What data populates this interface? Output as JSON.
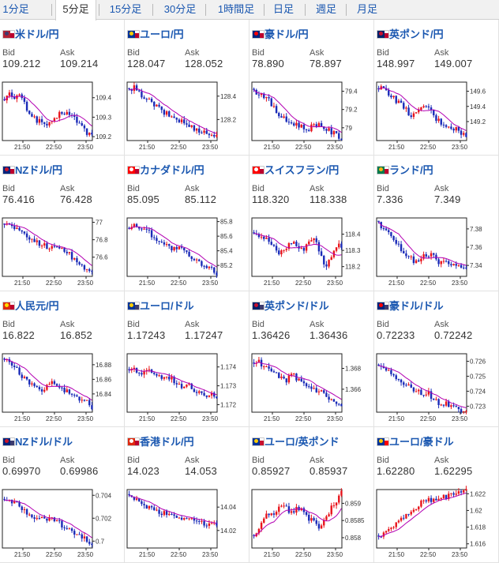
{
  "tabs": [
    {
      "label": "1分足",
      "active": false
    },
    {
      "label": "5分足",
      "active": true
    },
    {
      "label": "15分足",
      "active": false
    },
    {
      "label": "30分足",
      "active": false
    },
    {
      "label": "1時間足",
      "active": false
    },
    {
      "label": "日足",
      "active": false
    },
    {
      "label": "週足",
      "active": false
    },
    {
      "label": "月足",
      "active": false
    }
  ],
  "labels": {
    "bid": "Bid",
    "ask": "Ask"
  },
  "x_ticks": [
    "21:50",
    "22:50",
    "23:50"
  ],
  "colors": {
    "up": "#e8141c",
    "down": "#1a2bb8",
    "ma": "#b300b3",
    "link": "#1a57b0"
  },
  "pairs": [
    {
      "name": "米ドル/円",
      "flag_icon": "us-jp-flag-icon",
      "bid": "109.212",
      "ask": "109.214",
      "y_ticks": [
        "109.4",
        "109.3",
        "109.2"
      ],
      "y_range": [
        109.18,
        109.48
      ],
      "path": [
        109.4,
        109.42,
        109.38,
        109.43,
        109.37,
        109.33,
        109.3,
        109.28,
        109.27,
        109.26,
        109.27,
        109.31,
        109.33,
        109.32,
        109.3,
        109.28,
        109.25,
        109.22,
        109.21
      ],
      "ma_dir": "down"
    },
    {
      "name": "ユーロ/円",
      "flag_icon": "eu-jp-flag-icon",
      "bid": "128.047",
      "ask": "128.052",
      "y_ticks": [
        "128.4",
        "128.2"
      ],
      "y_range": [
        128.02,
        128.52
      ],
      "path": [
        128.44,
        128.47,
        128.42,
        128.4,
        128.36,
        128.33,
        128.3,
        128.26,
        128.24,
        128.22,
        128.2,
        128.18,
        128.15,
        128.13,
        128.12,
        128.1,
        128.08,
        128.07,
        128.05
      ],
      "ma_dir": "down"
    },
    {
      "name": "豪ドル/円",
      "flag_icon": "au-jp-flag-icon",
      "bid": "78.890",
      "ask": "78.897",
      "y_ticks": [
        "79.4",
        "79.2",
        "79"
      ],
      "y_range": [
        78.86,
        79.5
      ],
      "path": [
        79.4,
        79.38,
        79.36,
        79.3,
        79.22,
        79.15,
        79.1,
        79.06,
        79.05,
        79.04,
        79.0,
        78.98,
        79.02,
        79.05,
        79.02,
        78.98,
        78.95,
        78.92,
        78.89
      ],
      "ma_dir": "down"
    },
    {
      "name": "英ポンド/円",
      "flag_icon": "gb-jp-flag-icon",
      "bid": "148.997",
      "ask": "149.007",
      "y_ticks": [
        "149.6",
        "149.4",
        "149.2"
      ],
      "y_range": [
        148.95,
        149.72
      ],
      "path": [
        149.62,
        149.65,
        149.58,
        149.52,
        149.45,
        149.4,
        149.32,
        149.28,
        149.3,
        149.38,
        149.42,
        149.3,
        149.22,
        149.18,
        149.15,
        149.12,
        149.1,
        149.05,
        149.0
      ],
      "ma_dir": "down"
    },
    {
      "name": "NZドル/円",
      "flag_icon": "nz-jp-flag-icon",
      "bid": "76.416",
      "ask": "76.428",
      "y_ticks": [
        "77",
        "76.8",
        "76.6"
      ],
      "y_range": [
        76.38,
        77.05
      ],
      "path": [
        76.98,
        76.97,
        76.95,
        76.9,
        76.85,
        76.82,
        76.8,
        76.76,
        76.74,
        76.72,
        76.7,
        76.73,
        76.7,
        76.65,
        76.6,
        76.55,
        76.5,
        76.46,
        76.42
      ],
      "ma_dir": "down"
    },
    {
      "name": "カナダドル/円",
      "flag_icon": "ca-jp-flag-icon",
      "bid": "85.095",
      "ask": "85.112",
      "y_ticks": [
        "85.8",
        "85.6",
        "85.4",
        "85.2"
      ],
      "y_range": [
        85.05,
        85.85
      ],
      "path": [
        85.72,
        85.74,
        85.73,
        85.7,
        85.66,
        85.6,
        85.55,
        85.5,
        85.46,
        85.42,
        85.44,
        85.4,
        85.35,
        85.28,
        85.25,
        85.2,
        85.18,
        85.14,
        85.1
      ],
      "ma_dir": "down"
    },
    {
      "name": "スイスフラン/円",
      "flag_icon": "ch-jp-flag-icon",
      "bid": "118.320",
      "ask": "118.338",
      "y_ticks": [
        "118.4",
        "118.3",
        "118.2"
      ],
      "y_range": [
        118.14,
        118.5
      ],
      "path": [
        118.42,
        118.4,
        118.38,
        118.36,
        118.32,
        118.28,
        118.3,
        118.33,
        118.36,
        118.32,
        118.3,
        118.35,
        118.38,
        118.34,
        118.25,
        118.2,
        118.28,
        118.33,
        118.32
      ],
      "ma_dir": "flat"
    },
    {
      "name": "ランド/円",
      "flag_icon": "za-jp-flag-icon",
      "bid": "7.336",
      "ask": "7.349",
      "y_ticks": [
        "7.38",
        "7.36",
        "7.34"
      ],
      "y_range": [
        7.328,
        7.392
      ],
      "path": [
        7.385,
        7.382,
        7.378,
        7.37,
        7.362,
        7.355,
        7.35,
        7.346,
        7.344,
        7.348,
        7.352,
        7.35,
        7.346,
        7.342,
        7.345,
        7.34,
        7.338,
        7.337,
        7.336
      ],
      "ma_dir": "down"
    },
    {
      "name": "人民元/円",
      "flag_icon": "cn-jp-flag-icon",
      "bid": "16.822",
      "ask": "16.852",
      "y_ticks": [
        "16.88",
        "16.86",
        "16.84"
      ],
      "y_range": [
        16.815,
        16.895
      ],
      "path": [
        16.885,
        16.884,
        16.878,
        16.87,
        16.862,
        16.855,
        16.85,
        16.848,
        16.846,
        16.852,
        16.856,
        16.85,
        16.845,
        16.842,
        16.84,
        16.836,
        16.832,
        16.828,
        16.823
      ],
      "ma_dir": "down"
    },
    {
      "name": "ユーロ/ドル",
      "flag_icon": "eu-us-flag-icon",
      "bid": "1.17243",
      "ask": "1.17247",
      "y_ticks": [
        "1.174",
        "1.173",
        "1.172"
      ],
      "y_range": [
        1.1716,
        1.1747
      ],
      "path": [
        1.1738,
        1.1739,
        1.1737,
        1.1736,
        1.1738,
        1.1737,
        1.1735,
        1.1734,
        1.1735,
        1.1733,
        1.1731,
        1.173,
        1.1732,
        1.1729,
        1.1727,
        1.1726,
        1.1725,
        1.1727,
        1.1724
      ],
      "ma_dir": "down"
    },
    {
      "name": "英ポンド/ドル",
      "flag_icon": "gb-us-flag-icon",
      "bid": "1.36426",
      "ask": "1.36436",
      "y_ticks": [
        "1.368",
        "1.366"
      ],
      "y_range": [
        1.3638,
        1.3694
      ],
      "path": [
        1.3685,
        1.3686,
        1.3682,
        1.3678,
        1.3675,
        1.3672,
        1.3668,
        1.367,
        1.3673,
        1.367,
        1.3665,
        1.3662,
        1.366,
        1.3658,
        1.3656,
        1.3652,
        1.3648,
        1.3645,
        1.3643
      ],
      "ma_dir": "down"
    },
    {
      "name": "豪ドル/ドル",
      "flag_icon": "au-us-flag-icon",
      "bid": "0.72233",
      "ask": "0.72242",
      "y_ticks": [
        "0.726",
        "0.725",
        "0.724",
        "0.723"
      ],
      "y_range": [
        0.7226,
        0.7265
      ],
      "path": [
        0.7258,
        0.7257,
        0.7254,
        0.725,
        0.7247,
        0.7245,
        0.7243,
        0.7241,
        0.724,
        0.7238,
        0.7239,
        0.7236,
        0.7233,
        0.7231,
        0.7232,
        0.723,
        0.7229,
        0.7228,
        0.7225
      ],
      "ma_dir": "down"
    },
    {
      "name": "NZドル/ドル",
      "flag_icon": "nz-us-flag-icon",
      "bid": "0.69970",
      "ask": "0.69986",
      "y_ticks": [
        "0.704",
        "0.702",
        "0.7"
      ],
      "y_range": [
        0.6994,
        0.7045
      ],
      "path": [
        0.7038,
        0.7037,
        0.7034,
        0.703,
        0.7027,
        0.7024,
        0.7022,
        0.702,
        0.7019,
        0.7018,
        0.702,
        0.7017,
        0.7013,
        0.701,
        0.7008,
        0.7005,
        0.7003,
        0.7,
        0.6998
      ],
      "ma_dir": "down"
    },
    {
      "name": "香港ドル/円",
      "flag_icon": "hk-jp-flag-icon",
      "bid": "14.023",
      "ask": "14.053",
      "y_ticks": [
        "14.04",
        "14.02"
      ],
      "y_range": [
        14.005,
        14.055
      ],
      "path": [
        14.048,
        14.046,
        14.044,
        14.042,
        14.04,
        14.038,
        14.036,
        14.035,
        14.034,
        14.033,
        14.032,
        14.031,
        14.03,
        14.029,
        14.028,
        14.027,
        14.026,
        14.025,
        14.024
      ],
      "ma_dir": "down"
    },
    {
      "name": "ユーロ/英ポンド",
      "flag_icon": "eu-gb-flag-icon",
      "bid": "0.85927",
      "ask": "0.85937",
      "y_ticks": [
        "0.859",
        "0.8585",
        "0.858"
      ],
      "y_range": [
        0.8577,
        0.8594
      ],
      "path": [
        0.858,
        0.8582,
        0.8585,
        0.8587,
        0.8586,
        0.8589,
        0.859,
        0.8588,
        0.8587,
        0.8589,
        0.8588,
        0.8586,
        0.8585,
        0.8583,
        0.8584,
        0.8586,
        0.8589,
        0.8591,
        0.8593
      ],
      "ma_dir": "up"
    },
    {
      "name": "ユーロ/豪ドル",
      "flag_icon": "eu-au-flag-icon",
      "bid": "1.62280",
      "ask": "1.62295",
      "y_ticks": [
        "1.622",
        "1.62",
        "1.618",
        "1.616"
      ],
      "y_range": [
        1.6155,
        1.6225
      ],
      "path": [
        1.6168,
        1.617,
        1.6175,
        1.6182,
        1.6186,
        1.619,
        1.6195,
        1.62,
        1.6205,
        1.621,
        1.6214,
        1.6212,
        1.6215,
        1.6218,
        1.6216,
        1.6219,
        1.622,
        1.6222,
        1.6228
      ],
      "ma_dir": "up"
    }
  ]
}
